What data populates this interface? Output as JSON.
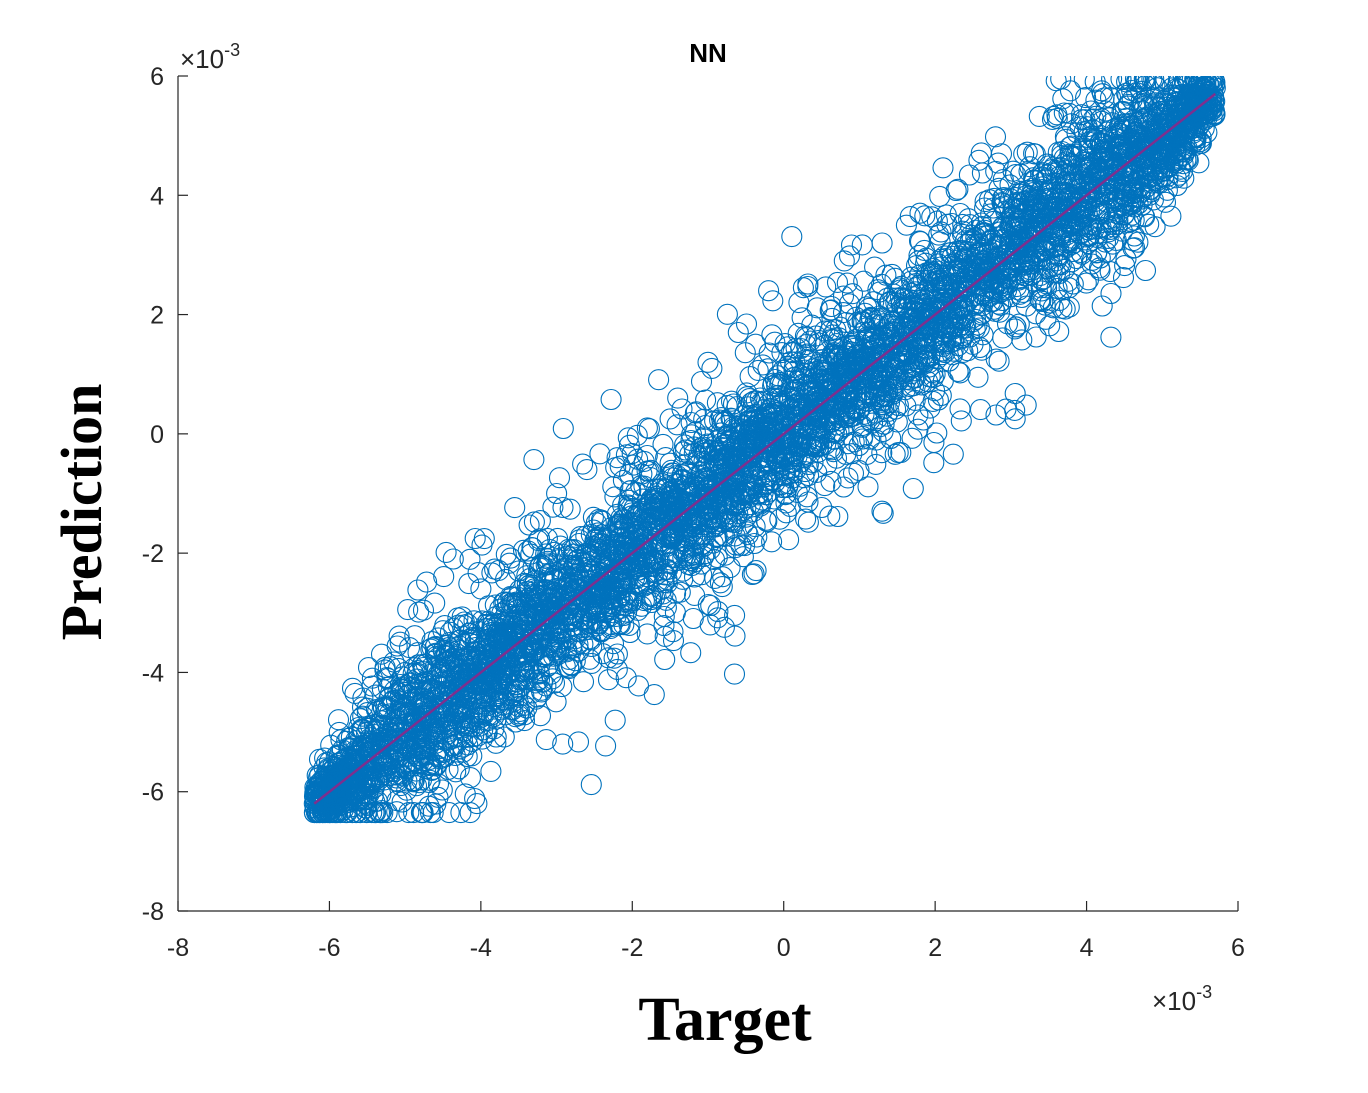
{
  "chart_data": {
    "type": "scatter",
    "title": "NN",
    "xlabel": "Target",
    "ylabel": "Prediction",
    "x_exponent_base": "×10",
    "x_exponent_power": "-3",
    "y_exponent_base": "×10",
    "y_exponent_power": "-3",
    "xlim": [
      -8,
      6
    ],
    "ylim": [
      -8,
      6
    ],
    "xticks": [
      "-8",
      "-6",
      "-4",
      "-2",
      "0",
      "2",
      "4",
      "6"
    ],
    "yticks": [
      "-8",
      "-6",
      "-4",
      "-2",
      "0",
      "2",
      "4",
      "6"
    ],
    "grid": false,
    "marker": "open-circle",
    "series": [
      {
        "marker_color": "#0072BD",
        "x_range": [
          -6.2,
          5.7
        ],
        "core_spread": 0.55,
        "outer_spread": 1.1,
        "points": [
          [
            -6.2,
            -6.2
          ],
          [
            -6.0,
            -5.5
          ],
          [
            -5.8,
            -6.1
          ],
          [
            -5.5,
            -4.6
          ],
          [
            -5.2,
            -5.6
          ],
          [
            -5.0,
            -4.0
          ],
          [
            -4.8,
            -5.3
          ],
          [
            -4.5,
            -3.3
          ],
          [
            -4.2,
            -4.9
          ],
          [
            -4.0,
            -2.6
          ],
          [
            -3.7,
            -4.6
          ],
          [
            -3.5,
            -2.3
          ],
          [
            -3.2,
            -4.3
          ],
          [
            -3.0,
            -1.0
          ],
          [
            -2.8,
            -3.6
          ],
          [
            -2.6,
            -0.6
          ],
          [
            -2.4,
            -3.3
          ],
          [
            -2.2,
            -0.4
          ],
          [
            -2.0,
            -2.8
          ],
          [
            -1.8,
            0.1
          ],
          [
            -1.6,
            -2.3
          ],
          [
            -1.4,
            0.6
          ],
          [
            -1.2,
            -2.0
          ],
          [
            -1.0,
            1.2
          ],
          [
            -0.8,
            -1.7
          ],
          [
            -0.6,
            1.7
          ],
          [
            -0.4,
            -1.3
          ],
          [
            -0.2,
            2.4
          ],
          [
            0.0,
            -0.9
          ],
          [
            0.2,
            2.2
          ],
          [
            0.5,
            -0.2
          ],
          [
            0.8,
            2.9
          ],
          [
            1.0,
            0.4
          ],
          [
            1.3,
            3.2
          ],
          [
            1.5,
            0.2
          ],
          [
            1.8,
            3.7
          ],
          [
            2.0,
            1.0
          ],
          [
            2.3,
            4.1
          ],
          [
            2.5,
            1.5
          ],
          [
            2.8,
            4.4
          ],
          [
            3.0,
            2.3
          ],
          [
            3.3,
            4.7
          ],
          [
            3.5,
            2.8
          ],
          [
            3.8,
            5.2
          ],
          [
            4.0,
            3.3
          ],
          [
            4.3,
            5.3
          ],
          [
            4.5,
            4.0
          ],
          [
            4.8,
            5.6
          ],
          [
            5.0,
            4.4
          ],
          [
            5.3,
            5.9
          ],
          [
            5.5,
            4.9
          ],
          [
            5.7,
            5.8
          ]
        ]
      }
    ],
    "fit_line": {
      "color": "#7E2F8E",
      "from": [
        -6.2,
        -6.2
      ],
      "to": [
        5.7,
        5.7
      ]
    }
  }
}
